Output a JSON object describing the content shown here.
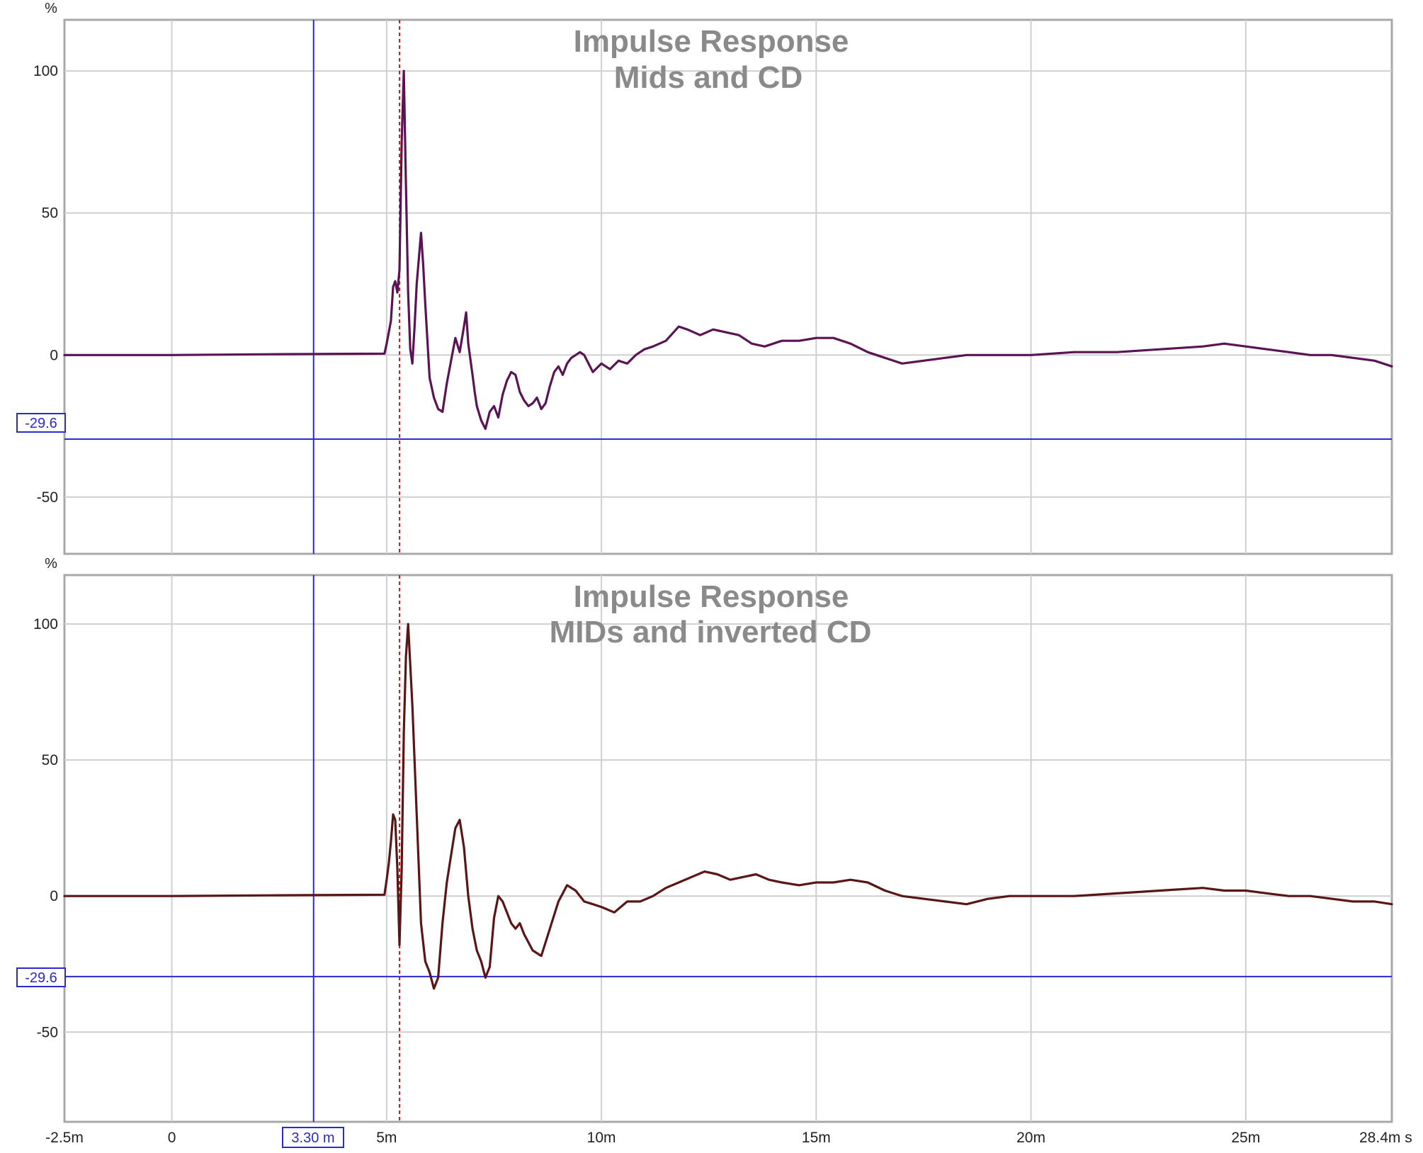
{
  "x_axis": {
    "unit": "s",
    "ticks": [
      {
        "value": -2.5,
        "label": "-2.5m"
      },
      {
        "value": 0,
        "label": "0"
      },
      {
        "value": 5,
        "label": "5m"
      },
      {
        "value": 10,
        "label": "10m"
      },
      {
        "value": 15,
        "label": "15m"
      },
      {
        "value": 20,
        "label": "20m"
      },
      {
        "value": 25,
        "label": "25m"
      },
      {
        "value": 28.4,
        "label": "28.4m s"
      }
    ],
    "range_ms": [
      -2.5,
      28.4
    ],
    "cursor": {
      "value": 3.3,
      "label": "3.30 m"
    },
    "reference_marker_ms": 5.3
  },
  "colors": {
    "series_top": "#5a1454",
    "series_bottom": "#5a1616",
    "grid": "#cfcfcf",
    "frame": "#a8a8a8",
    "cursor": "#2a2ad0",
    "reference_marker": "#d01818",
    "title": "#8a8a8a"
  },
  "chart_data": [
    {
      "type": "line",
      "title": "Impulse Response",
      "subtitle": "Mids and CD",
      "ylabel": "%",
      "ylim": [
        -70,
        118
      ],
      "xlim": [
        -2.5,
        28.4
      ],
      "y_ticks": [
        {
          "value": 100,
          "label": "100"
        },
        {
          "value": 50,
          "label": "50"
        },
        {
          "value": 0,
          "label": "0"
        },
        {
          "value": -50,
          "label": "-50"
        }
      ],
      "y_cursor": {
        "value": -29.6,
        "label": "-29.6"
      },
      "grid": true,
      "series": [
        {
          "x": [
            -2.5,
            0,
            2.5,
            4.95,
            5.0,
            5.05,
            5.1,
            5.15,
            5.2,
            5.25,
            5.3,
            5.35,
            5.4,
            5.45,
            5.5,
            5.55,
            5.6,
            5.65,
            5.7,
            5.8,
            5.85,
            5.9,
            6.0,
            6.1,
            6.2,
            6.3,
            6.4,
            6.5,
            6.6,
            6.7,
            6.8,
            6.85,
            6.9,
            7.0,
            7.05,
            7.1,
            7.2,
            7.3,
            7.4,
            7.5,
            7.6,
            7.7,
            7.8,
            7.9,
            8.0,
            8.1,
            8.2,
            8.3,
            8.4,
            8.5,
            8.6,
            8.7,
            8.8,
            8.9,
            9.0,
            9.1,
            9.2,
            9.3,
            9.4,
            9.5,
            9.6,
            9.8,
            10.0,
            10.2,
            10.4,
            10.6,
            10.8,
            11.0,
            11.2,
            11.5,
            11.8,
            12.0,
            12.3,
            12.6,
            12.9,
            13.2,
            13.5,
            13.8,
            14.2,
            14.6,
            15.0,
            15.4,
            15.8,
            16.2,
            16.6,
            17.0,
            17.5,
            18.0,
            18.5,
            19.0,
            19.5,
            20.0,
            21.0,
            22.0,
            23.0,
            24.0,
            24.5,
            25.0,
            25.5,
            26.0,
            26.5,
            27.0,
            27.5,
            28.0,
            28.4
          ],
          "y": [
            0,
            0,
            0.3,
            0.5,
            4,
            8,
            12,
            24,
            26,
            22,
            30,
            75,
            100,
            60,
            22,
            2,
            -3,
            10,
            25,
            43,
            32,
            18,
            -8,
            -15,
            -19,
            -20,
            -10,
            -2,
            6,
            1,
            10,
            15,
            4,
            -7,
            -13,
            -18,
            -23,
            -26,
            -20,
            -18,
            -22,
            -14,
            -9,
            -6,
            -7,
            -13,
            -16,
            -18,
            -17,
            -15,
            -19,
            -17,
            -11,
            -6,
            -4,
            -7,
            -3,
            -1,
            0,
            1,
            0,
            -6,
            -3,
            -5,
            -2,
            -3,
            0,
            2,
            3,
            5,
            10,
            9,
            7,
            9,
            8,
            7,
            4,
            3,
            5,
            5,
            6,
            6,
            4,
            1,
            -1,
            -3,
            -2,
            -1,
            0,
            0,
            0,
            0,
            1,
            1,
            2,
            3,
            4,
            3,
            2,
            1,
            0,
            0,
            -1,
            -2,
            -4
          ]
        }
      ]
    },
    {
      "type": "line",
      "title": "Impulse Response",
      "subtitle": "MIDs and inverted CD",
      "ylabel": "%",
      "ylim": [
        -83,
        118
      ],
      "xlim": [
        -2.5,
        28.4
      ],
      "y_ticks": [
        {
          "value": 100,
          "label": "100"
        },
        {
          "value": 50,
          "label": "50"
        },
        {
          "value": 0,
          "label": "0"
        },
        {
          "value": -50,
          "label": "-50"
        }
      ],
      "y_cursor": {
        "value": -29.6,
        "label": "-29.6"
      },
      "grid": true,
      "series": [
        {
          "x": [
            -2.5,
            0,
            2.5,
            4.95,
            5.0,
            5.05,
            5.1,
            5.15,
            5.2,
            5.25,
            5.3,
            5.35,
            5.4,
            5.45,
            5.5,
            5.6,
            5.7,
            5.8,
            5.9,
            6.0,
            6.1,
            6.2,
            6.3,
            6.4,
            6.5,
            6.6,
            6.7,
            6.8,
            6.9,
            7.0,
            7.1,
            7.2,
            7.3,
            7.4,
            7.5,
            7.6,
            7.7,
            7.8,
            7.9,
            8.0,
            8.1,
            8.2,
            8.4,
            8.6,
            8.8,
            9.0,
            9.2,
            9.4,
            9.6,
            9.8,
            10.0,
            10.3,
            10.6,
            10.9,
            11.2,
            11.5,
            11.8,
            12.1,
            12.4,
            12.7,
            13.0,
            13.3,
            13.6,
            13.9,
            14.2,
            14.6,
            15.0,
            15.4,
            15.8,
            16.2,
            16.6,
            17.0,
            17.5,
            18.0,
            18.5,
            19.0,
            19.5,
            20.0,
            21.0,
            22.0,
            23.0,
            24.0,
            24.5,
            25.0,
            25.5,
            26.0,
            26.5,
            27.0,
            27.5,
            28.0,
            28.4
          ],
          "y": [
            0,
            0,
            0.3,
            0.5,
            6,
            12,
            20,
            30,
            28,
            10,
            -18,
            10,
            60,
            88,
            100,
            70,
            30,
            -10,
            -24,
            -28,
            -34,
            -30,
            -10,
            5,
            15,
            25,
            28,
            18,
            0,
            -12,
            -20,
            -24,
            -30,
            -26,
            -8,
            0,
            -2,
            -6,
            -10,
            -12,
            -10,
            -14,
            -20,
            -22,
            -12,
            -2,
            4,
            2,
            -2,
            -3,
            -4,
            -6,
            -2,
            -2,
            0,
            3,
            5,
            7,
            9,
            8,
            6,
            7,
            8,
            6,
            5,
            4,
            5,
            5,
            6,
            5,
            2,
            0,
            -1,
            -2,
            -3,
            -1,
            0,
            0,
            0,
            1,
            2,
            3,
            2,
            2,
            1,
            0,
            0,
            -1,
            -2,
            -2,
            -3
          ]
        }
      ]
    }
  ]
}
